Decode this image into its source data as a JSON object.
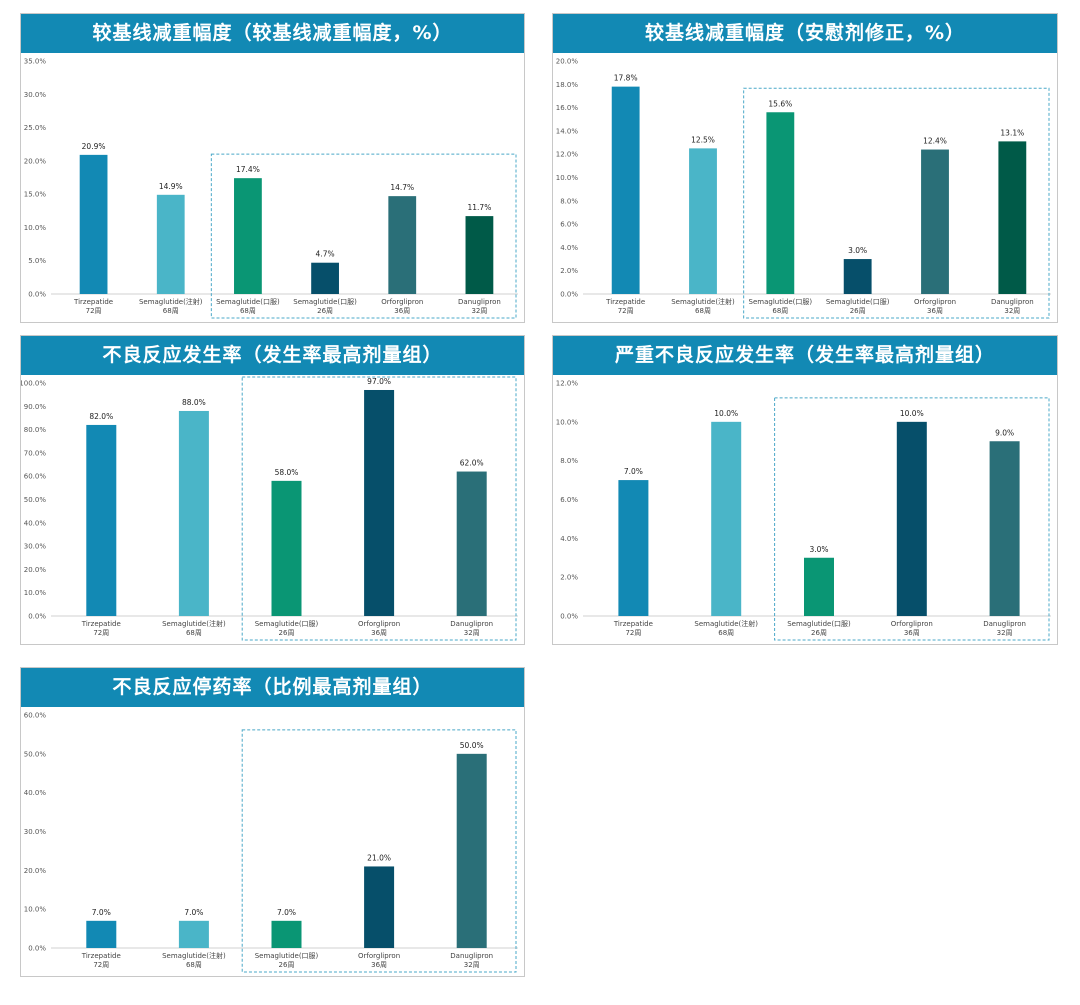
{
  "colors": {
    "header_bg": "#1289b4",
    "header_text": "#ffffff",
    "highlight_box": "#4aa8c8",
    "axis": "#d0d0d0"
  },
  "chart_data": [
    {
      "type": "bar",
      "title": "较基线减重幅度（较基线减重幅度，%）",
      "ylim": [
        0,
        35
      ],
      "yticks": [
        "0.0%",
        "5.0%",
        "10.0%",
        "15.0%",
        "20.0%",
        "25.0%",
        "30.0%",
        "35.0%"
      ],
      "categories": [
        {
          "name": "Tirzepatide",
          "duration": "72周"
        },
        {
          "name": "Semaglutide(注射)",
          "duration": "68周"
        },
        {
          "name": "Semaglutide(口服)",
          "duration": "68周"
        },
        {
          "name": "Semaglutide(口服)",
          "duration": "26周"
        },
        {
          "name": "Orforglipron",
          "duration": "36周"
        },
        {
          "name": "Danuglipron",
          "duration": "32周"
        }
      ],
      "values": [
        20.9,
        14.9,
        17.4,
        4.7,
        14.7,
        11.7
      ],
      "labels": [
        "20.9%",
        "14.9%",
        "17.4%",
        "4.7%",
        "14.7%",
        "11.7%"
      ],
      "bar_colors": [
        "#1289b4",
        "#4ab5c8",
        "#0a9674",
        "#064f6a",
        "#2a6f78",
        "#005a48"
      ],
      "highlight_range": [
        2,
        5
      ],
      "legend": "none",
      "grid": false
    },
    {
      "type": "bar",
      "title": "较基线减重幅度（安慰剂修正，%）",
      "ylim": [
        0,
        20
      ],
      "yticks": [
        "0.0%",
        "2.0%",
        "4.0%",
        "6.0%",
        "8.0%",
        "10.0%",
        "12.0%",
        "14.0%",
        "16.0%",
        "18.0%",
        "20.0%"
      ],
      "categories": [
        {
          "name": "Tirzepatide",
          "duration": "72周"
        },
        {
          "name": "Semaglutide(注射)",
          "duration": "68周"
        },
        {
          "name": "Semaglutide(口服)",
          "duration": "68周"
        },
        {
          "name": "Semaglutide(口服)",
          "duration": "26周"
        },
        {
          "name": "Orforglipron",
          "duration": "36周"
        },
        {
          "name": "Danuglipron",
          "duration": "32周"
        }
      ],
      "values": [
        17.8,
        12.5,
        15.6,
        3.0,
        12.4,
        13.1
      ],
      "labels": [
        "17.8%",
        "12.5%",
        "15.6%",
        "3.0%",
        "12.4%",
        "13.1%"
      ],
      "bar_colors": [
        "#1289b4",
        "#4ab5c8",
        "#0a9674",
        "#064f6a",
        "#2a6f78",
        "#005a48"
      ],
      "highlight_range": [
        2,
        5
      ],
      "legend": "none",
      "grid": false
    },
    {
      "type": "bar",
      "title": "不良反应发生率（发生率最高剂量组）",
      "ylim": [
        0,
        100
      ],
      "yticks": [
        "0.0%",
        "10.0%",
        "20.0%",
        "30.0%",
        "40.0%",
        "50.0%",
        "60.0%",
        "70.0%",
        "80.0%",
        "90.0%",
        "100.0%"
      ],
      "categories": [
        {
          "name": "Tirzepatide",
          "duration": "72周"
        },
        {
          "name": "Semaglutide(注射)",
          "duration": "68周"
        },
        {
          "name": "Semaglutide(口服)",
          "duration": "26周"
        },
        {
          "name": "Orforglipron",
          "duration": "36周"
        },
        {
          "name": "Danuglipron",
          "duration": "32周"
        }
      ],
      "values": [
        82.0,
        88.0,
        58.0,
        97.0,
        62.0
      ],
      "labels": [
        "82.0%",
        "88.0%",
        "58.0%",
        "97.0%",
        "62.0%"
      ],
      "bar_colors": [
        "#1289b4",
        "#4ab5c8",
        "#0a9674",
        "#064f6a",
        "#2a6f78"
      ],
      "highlight_range": [
        2,
        4
      ],
      "legend": "none",
      "grid": false
    },
    {
      "type": "bar",
      "title": "严重不良反应发生率（发生率最高剂量组）",
      "ylim": [
        0,
        12
      ],
      "yticks": [
        "0.0%",
        "2.0%",
        "4.0%",
        "6.0%",
        "8.0%",
        "10.0%",
        "12.0%"
      ],
      "categories": [
        {
          "name": "Tirzepatide",
          "duration": "72周"
        },
        {
          "name": "Semaglutide(注射)",
          "duration": "68周"
        },
        {
          "name": "Semaglutide(口服)",
          "duration": "26周"
        },
        {
          "name": "Orforglipron",
          "duration": "36周"
        },
        {
          "name": "Danuglipron",
          "duration": "32周"
        }
      ],
      "values": [
        7.0,
        10.0,
        3.0,
        10.0,
        9.0
      ],
      "labels": [
        "7.0%",
        "10.0%",
        "3.0%",
        "10.0%",
        "9.0%"
      ],
      "bar_colors": [
        "#1289b4",
        "#4ab5c8",
        "#0a9674",
        "#064f6a",
        "#2a6f78"
      ],
      "highlight_range": [
        2,
        4
      ],
      "legend": "none",
      "grid": false
    },
    {
      "type": "bar",
      "title": "不良反应停药率（比例最高剂量组）",
      "ylim": [
        0,
        60
      ],
      "yticks": [
        "0.0%",
        "10.0%",
        "20.0%",
        "30.0%",
        "40.0%",
        "50.0%",
        "60.0%"
      ],
      "categories": [
        {
          "name": "Tirzepatide",
          "duration": "72周"
        },
        {
          "name": "Semaglutide(注射)",
          "duration": "68周"
        },
        {
          "name": "Semaglutide(口服)",
          "duration": "26周"
        },
        {
          "name": "Orforglipron",
          "duration": "36周"
        },
        {
          "name": "Danuglipron",
          "duration": "32周"
        }
      ],
      "values": [
        7.0,
        7.0,
        7.0,
        21.0,
        50.0
      ],
      "labels": [
        "7.0%",
        "7.0%",
        "7.0%",
        "21.0%",
        "50.0%"
      ],
      "bar_colors": [
        "#1289b4",
        "#4ab5c8",
        "#0a9674",
        "#064f6a",
        "#2a6f78"
      ],
      "highlight_range": [
        2,
        4
      ],
      "legend": "none",
      "grid": false
    }
  ]
}
